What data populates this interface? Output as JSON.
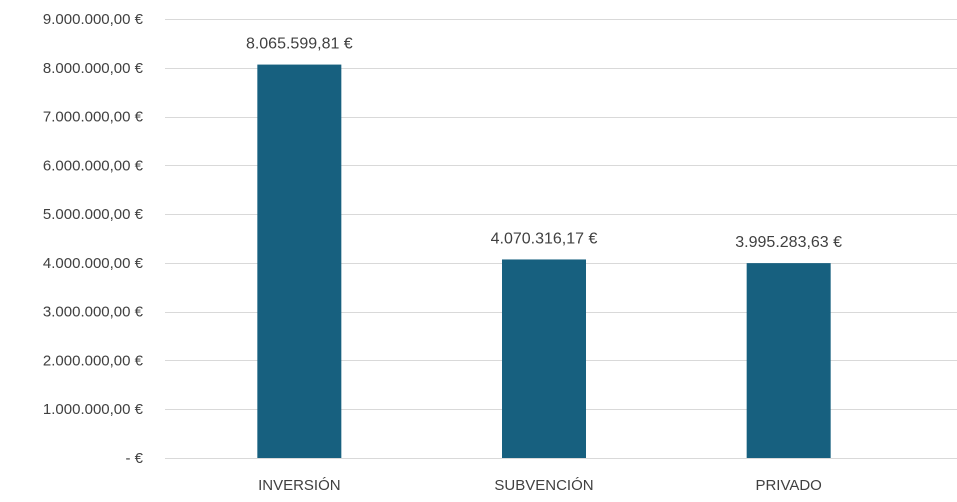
{
  "chart_data": {
    "type": "bar",
    "title": "",
    "xlabel": "",
    "ylabel": "",
    "categories": [
      "INVERSIÓN",
      "SUBVENCIÓN",
      "PRIVADO"
    ],
    "values": [
      8065599.81,
      4070316.17,
      3995283.63
    ],
    "data_labels": [
      "8.065.599,81 €",
      "4.070.316,17 €",
      "3.995.283,63 €"
    ],
    "ylim": [
      0,
      9000000
    ],
    "yticks": [
      0,
      1000000,
      2000000,
      3000000,
      4000000,
      5000000,
      6000000,
      7000000,
      8000000,
      9000000
    ],
    "ytick_labels": [
      "-  €",
      "1.000.000,00 €",
      "2.000.000,00 €",
      "3.000.000,00 €",
      "4.000.000,00 €",
      "5.000.000,00 €",
      "6.000.000,00 €",
      "7.000.000,00 €",
      "8.000.000,00 €",
      "9.000.000,00 €"
    ],
    "grid": true,
    "legend": "none",
    "bar_color": "#17607f"
  }
}
